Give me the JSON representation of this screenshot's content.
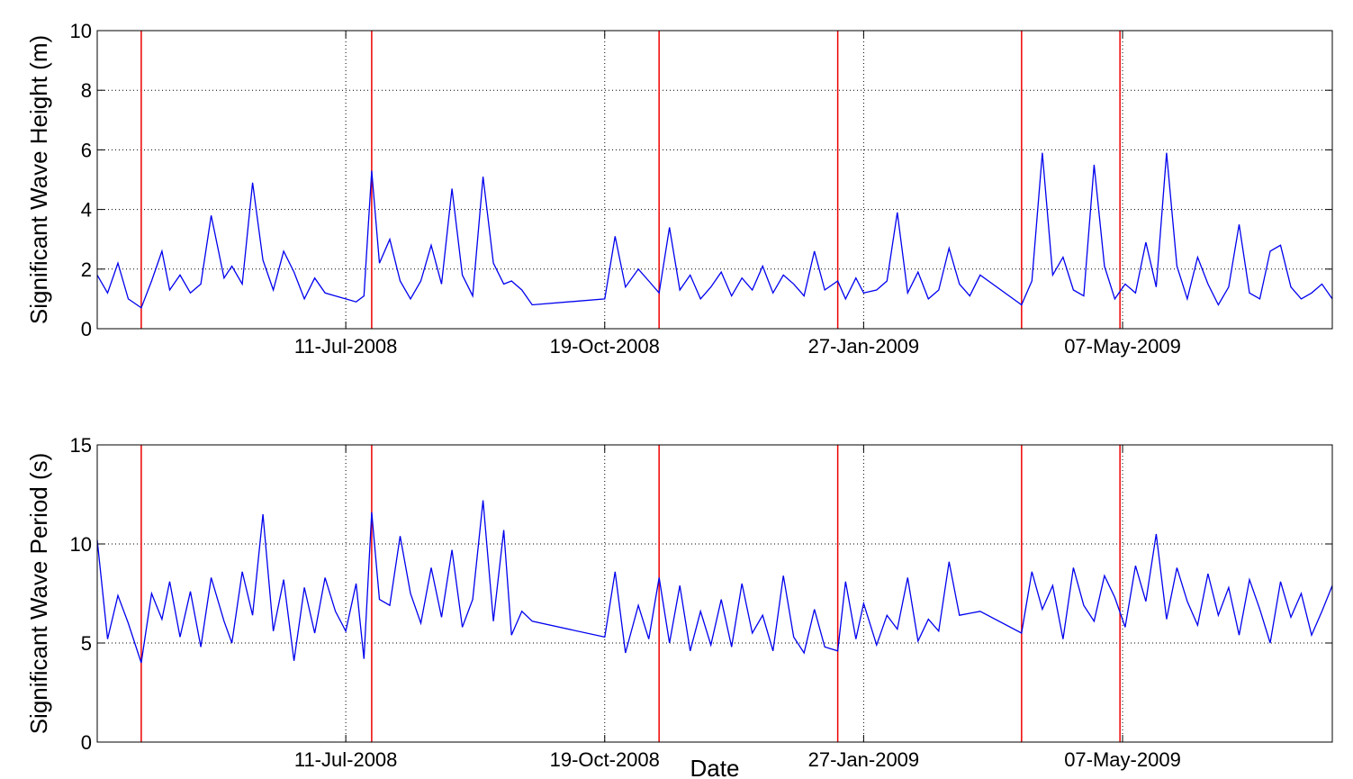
{
  "chart_data": [
    {
      "type": "line",
      "ylabel": "Significant Wave Height (m)",
      "xlabel": "",
      "ylim": [
        0,
        10
      ],
      "yticks": [
        0,
        2,
        4,
        6,
        8,
        10
      ],
      "xlim": [
        "2008-04-06",
        "2009-07-27"
      ],
      "xticks": [
        "11-Jul-2008",
        "19-Oct-2008",
        "27-Jan-2009",
        "07-May-2009"
      ],
      "xtick_dates": [
        "2008-07-11",
        "2008-10-19",
        "2009-01-27",
        "2009-05-07"
      ],
      "grid": "dotted",
      "series_color": "#0000ee",
      "marker_color": "#ee0000",
      "vertical_markers": [
        "2008-04-23",
        "2008-07-21",
        "2008-11-09",
        "2009-01-17",
        "2009-03-29",
        "2009-05-06"
      ],
      "series": [
        {
          "x": [
            "2008-04-06",
            "2008-04-10",
            "2008-04-14",
            "2008-04-18",
            "2008-04-23",
            "2008-04-27",
            "2008-05-01",
            "2008-05-04",
            "2008-05-08",
            "2008-05-12",
            "2008-05-16",
            "2008-05-20",
            "2008-05-25",
            "2008-05-28",
            "2008-06-01",
            "2008-06-05",
            "2008-06-09",
            "2008-06-13",
            "2008-06-17",
            "2008-06-21",
            "2008-06-25",
            "2008-06-29",
            "2008-07-03",
            "2008-07-07",
            "2008-07-11",
            "2008-07-15",
            "2008-07-18",
            "2008-07-21",
            "2008-07-24",
            "2008-07-28",
            "2008-08-01",
            "2008-08-05",
            "2008-08-09",
            "2008-08-13",
            "2008-08-17",
            "2008-08-21",
            "2008-08-25",
            "2008-08-29",
            "2008-09-02",
            "2008-09-06",
            "2008-09-10",
            "2008-09-13",
            "2008-09-17",
            "2008-09-21",
            "2008-10-19",
            "2008-10-23",
            "2008-10-27",
            "2008-11-01",
            "2008-11-05",
            "2008-11-09",
            "2008-11-13",
            "2008-11-17",
            "2008-11-21",
            "2008-11-25",
            "2008-11-29",
            "2008-12-03",
            "2008-12-07",
            "2008-12-11",
            "2008-12-15",
            "2008-12-19",
            "2008-12-23",
            "2008-12-27",
            "2008-12-31",
            "2009-01-04",
            "2009-01-08",
            "2009-01-12",
            "2009-01-17",
            "2009-01-20",
            "2009-01-24",
            "2009-01-27",
            "2009-02-01",
            "2009-02-05",
            "2009-02-09",
            "2009-02-13",
            "2009-02-17",
            "2009-02-21",
            "2009-02-25",
            "2009-03-01",
            "2009-03-05",
            "2009-03-09",
            "2009-03-13",
            "2009-03-29",
            "2009-04-02",
            "2009-04-06",
            "2009-04-10",
            "2009-04-14",
            "2009-04-18",
            "2009-04-22",
            "2009-04-26",
            "2009-04-30",
            "2009-05-04",
            "2009-05-08",
            "2009-05-12",
            "2009-05-16",
            "2009-05-20",
            "2009-05-24",
            "2009-05-28",
            "2009-06-01",
            "2009-06-05",
            "2009-06-09",
            "2009-06-13",
            "2009-06-17",
            "2009-06-21",
            "2009-06-25",
            "2009-06-29",
            "2009-07-03",
            "2009-07-07",
            "2009-07-11",
            "2009-07-15",
            "2009-07-19",
            "2009-07-23",
            "2009-07-27"
          ],
          "y": [
            1.8,
            1.2,
            2.2,
            1.0,
            0.7,
            1.6,
            2.6,
            1.3,
            1.8,
            1.2,
            1.5,
            3.8,
            1.7,
            2.1,
            1.5,
            4.9,
            2.3,
            1.3,
            2.6,
            1.9,
            1.0,
            1.7,
            1.2,
            1.1,
            1.0,
            0.9,
            1.1,
            5.3,
            2.2,
            3.0,
            1.6,
            1.0,
            1.6,
            2.8,
            1.5,
            4.7,
            1.8,
            1.1,
            5.1,
            2.2,
            1.5,
            1.6,
            1.3,
            0.8,
            1.0,
            3.1,
            1.4,
            2.0,
            1.6,
            1.2,
            3.4,
            1.3,
            1.8,
            1.0,
            1.4,
            1.9,
            1.1,
            1.7,
            1.3,
            2.1,
            1.2,
            1.8,
            1.5,
            1.1,
            2.6,
            1.3,
            1.6,
            1.0,
            1.7,
            1.2,
            1.3,
            1.6,
            3.9,
            1.2,
            1.9,
            1.0,
            1.3,
            2.7,
            1.5,
            1.1,
            1.8,
            0.8,
            1.6,
            5.9,
            1.8,
            2.4,
            1.3,
            1.1,
            5.5,
            2.1,
            1.0,
            1.5,
            1.2,
            2.9,
            1.4,
            5.9,
            2.1,
            1.0,
            2.4,
            1.5,
            0.8,
            1.4,
            3.5,
            1.2,
            1.0,
            2.6,
            2.8,
            1.4,
            1.0,
            1.2,
            1.5,
            1.0
          ]
        }
      ]
    },
    {
      "type": "line",
      "ylabel": "Significant Wave Period (s)",
      "xlabel": "Date",
      "ylim": [
        0,
        15
      ],
      "yticks": [
        0,
        5,
        10,
        15
      ],
      "xlim": [
        "2008-04-06",
        "2009-07-27"
      ],
      "xticks": [
        "11-Jul-2008",
        "19-Oct-2008",
        "27-Jan-2009",
        "07-May-2009"
      ],
      "xtick_dates": [
        "2008-07-11",
        "2008-10-19",
        "2009-01-27",
        "2009-05-07"
      ],
      "grid": "dotted",
      "series_color": "#0000ee",
      "marker_color": "#ee0000",
      "vertical_markers": [
        "2008-04-23",
        "2008-07-21",
        "2008-11-09",
        "2009-01-17",
        "2009-03-29",
        "2009-05-06"
      ],
      "series": [
        {
          "x": [
            "2008-04-06",
            "2008-04-10",
            "2008-04-14",
            "2008-04-18",
            "2008-04-23",
            "2008-04-27",
            "2008-05-01",
            "2008-05-04",
            "2008-05-08",
            "2008-05-12",
            "2008-05-16",
            "2008-05-20",
            "2008-05-25",
            "2008-05-28",
            "2008-06-01",
            "2008-06-05",
            "2008-06-09",
            "2008-06-13",
            "2008-06-17",
            "2008-06-21",
            "2008-06-25",
            "2008-06-29",
            "2008-07-03",
            "2008-07-07",
            "2008-07-11",
            "2008-07-15",
            "2008-07-18",
            "2008-07-21",
            "2008-07-24",
            "2008-07-28",
            "2008-08-01",
            "2008-08-05",
            "2008-08-09",
            "2008-08-13",
            "2008-08-17",
            "2008-08-21",
            "2008-08-25",
            "2008-08-29",
            "2008-09-02",
            "2008-09-06",
            "2008-09-10",
            "2008-09-13",
            "2008-09-17",
            "2008-09-21",
            "2008-10-19",
            "2008-10-23",
            "2008-10-27",
            "2008-11-01",
            "2008-11-05",
            "2008-11-09",
            "2008-11-13",
            "2008-11-17",
            "2008-11-21",
            "2008-11-25",
            "2008-11-29",
            "2008-12-03",
            "2008-12-07",
            "2008-12-11",
            "2008-12-15",
            "2008-12-19",
            "2008-12-23",
            "2008-12-27",
            "2008-12-31",
            "2009-01-04",
            "2009-01-08",
            "2009-01-12",
            "2009-01-17",
            "2009-01-20",
            "2009-01-24",
            "2009-01-27",
            "2009-02-01",
            "2009-02-05",
            "2009-02-09",
            "2009-02-13",
            "2009-02-17",
            "2009-02-21",
            "2009-02-25",
            "2009-03-01",
            "2009-03-05",
            "2009-03-09",
            "2009-03-13",
            "2009-03-29",
            "2009-04-02",
            "2009-04-06",
            "2009-04-10",
            "2009-04-14",
            "2009-04-18",
            "2009-04-22",
            "2009-04-26",
            "2009-04-30",
            "2009-05-04",
            "2009-05-08",
            "2009-05-12",
            "2009-05-16",
            "2009-05-20",
            "2009-05-24",
            "2009-05-28",
            "2009-06-01",
            "2009-06-05",
            "2009-06-09",
            "2009-06-13",
            "2009-06-17",
            "2009-06-21",
            "2009-06-25",
            "2009-06-29",
            "2009-07-03",
            "2009-07-07",
            "2009-07-11",
            "2009-07-15",
            "2009-07-19",
            "2009-07-23",
            "2009-07-27"
          ],
          "y": [
            10.2,
            5.2,
            7.4,
            6.0,
            4.0,
            7.5,
            6.2,
            8.1,
            5.3,
            7.6,
            4.8,
            8.3,
            6.1,
            5.0,
            8.6,
            6.4,
            11.5,
            5.6,
            8.2,
            4.1,
            7.8,
            5.5,
            8.3,
            6.6,
            5.6,
            8.0,
            4.2,
            11.6,
            7.2,
            6.9,
            10.4,
            7.5,
            6.0,
            8.8,
            6.3,
            9.7,
            5.8,
            7.2,
            12.2,
            6.1,
            10.7,
            5.4,
            6.6,
            6.1,
            5.3,
            8.6,
            4.5,
            6.9,
            5.2,
            8.3,
            5.0,
            7.9,
            4.6,
            6.6,
            4.9,
            7.2,
            4.8,
            8.0,
            5.5,
            6.4,
            4.6,
            8.4,
            5.3,
            4.5,
            6.7,
            4.8,
            4.6,
            8.1,
            5.2,
            7.0,
            4.9,
            6.4,
            5.7,
            8.3,
            5.1,
            6.2,
            5.6,
            9.1,
            6.4,
            6.5,
            6.6,
            5.5,
            8.6,
            6.7,
            7.9,
            5.2,
            8.8,
            6.9,
            6.1,
            8.4,
            7.3,
            5.8,
            8.9,
            7.1,
            10.5,
            6.2,
            8.8,
            7.1,
            5.9,
            8.5,
            6.4,
            7.8,
            5.4,
            8.2,
            6.7,
            5.0,
            8.1,
            6.3,
            7.5,
            5.4,
            6.6,
            7.9
          ]
        }
      ]
    }
  ]
}
